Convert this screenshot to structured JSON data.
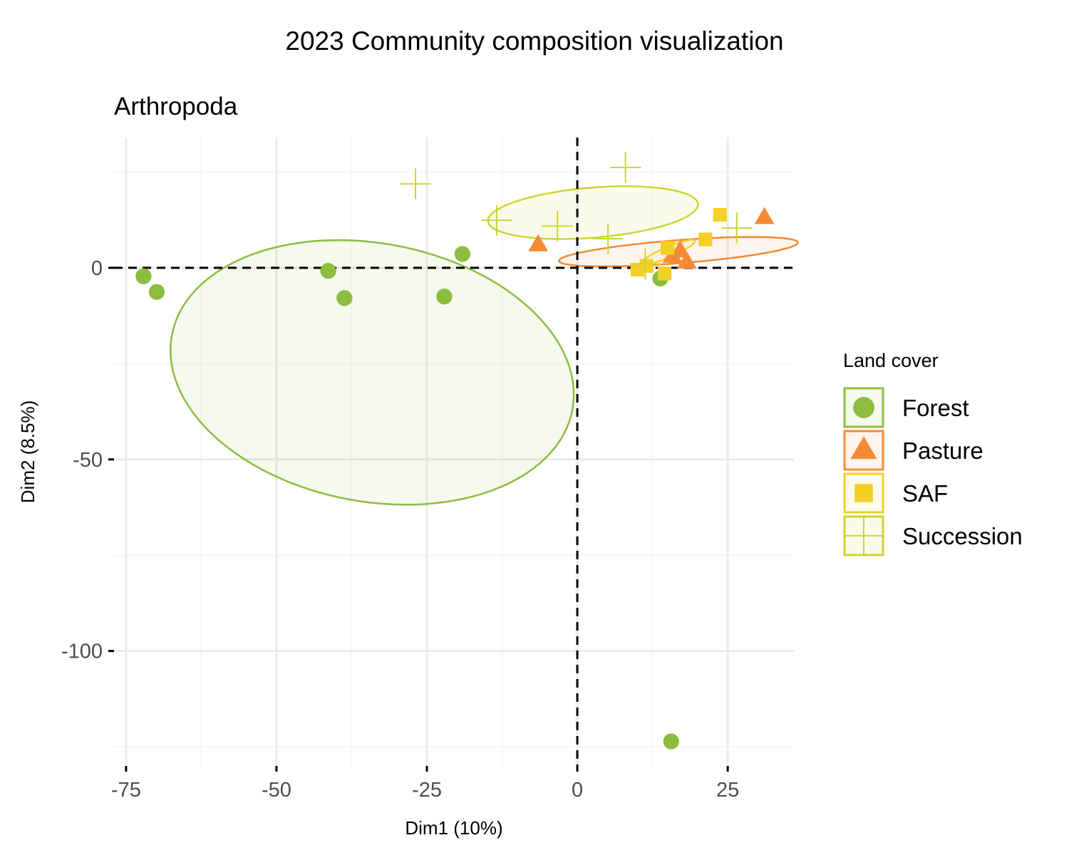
{
  "chart_data": {
    "type": "scatter",
    "title": "2023 Community composition visualization",
    "subtitle": "Arthropoda",
    "xlabel": "Dim1 (10%)",
    "ylabel": "Dim2 (8.5%)",
    "xlim": [
      -77,
      36
    ],
    "ylim": [
      -130,
      34
    ],
    "xticks": [
      -75,
      -50,
      -25,
      0,
      25
    ],
    "xtick_labels": [
      "-75",
      "-50",
      "-25",
      "0",
      "25"
    ],
    "yticks": [
      0,
      -50,
      -100
    ],
    "ytick_labels": [
      "0",
      "-50",
      "-100"
    ],
    "grid": true,
    "reference_lines": {
      "x": 0,
      "y": 0,
      "style": "dashed"
    },
    "legend": {
      "title": "Land cover",
      "position": "right",
      "entries": [
        "Forest",
        "Pasture",
        "SAF",
        "Succession"
      ]
    },
    "series": [
      {
        "name": "Forest",
        "color": "#8cbd3f",
        "marker": "circle",
        "x": [
          -72.1,
          -69.9,
          -41.4,
          -38.7,
          -22.1,
          -19.1,
          13.8,
          15.6
        ],
        "y": [
          -2.2,
          -6.3,
          -0.8,
          -7.9,
          -7.5,
          3.6,
          -2.8,
          -123.6
        ],
        "ellipse": {
          "cx": -34.1,
          "cy": -27.3,
          "rx": 31.0,
          "ry": 36.8,
          "angle_deg": 40
        }
      },
      {
        "name": "Pasture",
        "color": "#f58a35",
        "marker": "triangle",
        "x": [
          -6.5,
          15.8,
          17.1,
          18.2,
          31.1
        ],
        "y": [
          6.0,
          3.0,
          4.4,
          1.5,
          13.1
        ],
        "ellipse": {
          "cx": 16.8,
          "cy": 4.2,
          "rx": 20.0,
          "ry": 3.0,
          "angle_deg": 7
        }
      },
      {
        "name": "SAF",
        "color": "#f4cf26",
        "marker": "square",
        "x": [
          10.0,
          11.5,
          14.5,
          15.0,
          21.3,
          23.7
        ],
        "y": [
          -0.5,
          0.5,
          -1.5,
          5.2,
          7.4,
          13.8
        ],
        "ellipse": {
          "cx": 15.0,
          "cy": 4.0,
          "rx": 5.5,
          "ry": 1.2,
          "angle_deg": 35
        }
      },
      {
        "name": "Succession",
        "color": "#cbd631",
        "marker": "plus",
        "x": [
          -26.9,
          -13.4,
          -3.3,
          5.1,
          8.0,
          11.3,
          26.5
        ],
        "y": [
          21.9,
          12.4,
          10.9,
          7.6,
          26.2,
          1.0,
          10.4
        ],
        "ellipse": {
          "cx": 2.6,
          "cy": 14.4,
          "rx": 17.6,
          "ry": 6.5,
          "angle_deg": 8
        }
      }
    ]
  }
}
